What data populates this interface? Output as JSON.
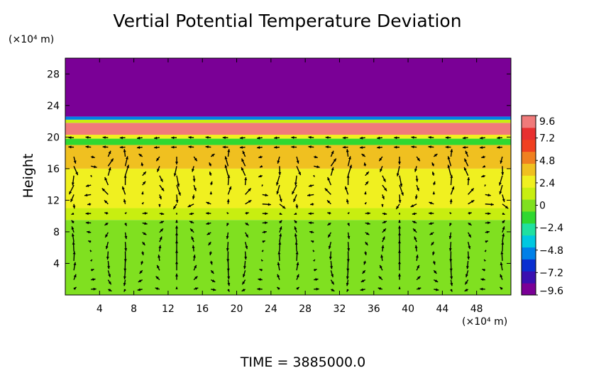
{
  "chart_data": {
    "type": "heatmap",
    "title": "Vertial Potential Temperature Deviation",
    "ylabel": "Height",
    "xlabel": "",
    "x_unit": "(×10⁴ m)",
    "y_unit": "(×10⁴ m)",
    "footer": "TIME  =  3885000.0",
    "xlim": [
      0,
      52
    ],
    "ylim": [
      0,
      30
    ],
    "x_ticks": [
      "4",
      "8",
      "12",
      "16",
      "20",
      "24",
      "28",
      "32",
      "36",
      "40",
      "44",
      "48"
    ],
    "x_tick_values": [
      4,
      8,
      12,
      16,
      20,
      24,
      28,
      32,
      36,
      40,
      44,
      48
    ],
    "y_ticks": [
      "4",
      "8",
      "12",
      "16",
      "20",
      "24",
      "28"
    ],
    "y_tick_values": [
      4,
      8,
      12,
      16,
      20,
      24,
      28
    ],
    "colorbar": {
      "ticks": [
        "9.6",
        "7.2",
        "4.8",
        "2.4",
        "0",
        "−2.4",
        "−4.8",
        "−7.2",
        "−9.6"
      ],
      "tick_values": [
        9.6,
        7.2,
        4.8,
        2.4,
        0,
        -2.4,
        -4.8,
        -7.2,
        -9.6
      ],
      "range": [
        -9.6,
        9.6
      ],
      "colors": [
        "#7a0096",
        "#3a10b0",
        "#0a2fd0",
        "#0080e8",
        "#00c8e0",
        "#20e0a0",
        "#30d830",
        "#80e020",
        "#c8ee10",
        "#f0f020",
        "#f0c020",
        "#f08020",
        "#f04020",
        "#e83030",
        "#f07a7a"
      ]
    },
    "field_layers": [
      {
        "y_range": [
          0,
          9.5
        ],
        "value": 0.2
      },
      {
        "y_range": [
          9.5,
          11
        ],
        "value": 0.9
      },
      {
        "y_range": [
          11,
          16
        ],
        "value": 2.2
      },
      {
        "y_range": [
          16,
          19
        ],
        "value": 3.4
      },
      {
        "y_range": [
          19,
          19.8
        ],
        "value": -1.2
      },
      {
        "y_range": [
          19.8,
          20.3
        ],
        "value": 2.6
      },
      {
        "y_range": [
          20.3,
          21.8
        ],
        "value": 8.4
      },
      {
        "y_range": [
          21.8,
          22.2
        ],
        "value": 1.2
      },
      {
        "y_range": [
          22.2,
          22.6
        ],
        "value": -4.6
      },
      {
        "y_range": [
          22.6,
          30
        ],
        "value": -9.6
      }
    ],
    "vectors": {
      "x_spacing": 2,
      "y_spacing": 1.2,
      "y_max": 20,
      "max_speed": 0.5
    }
  }
}
